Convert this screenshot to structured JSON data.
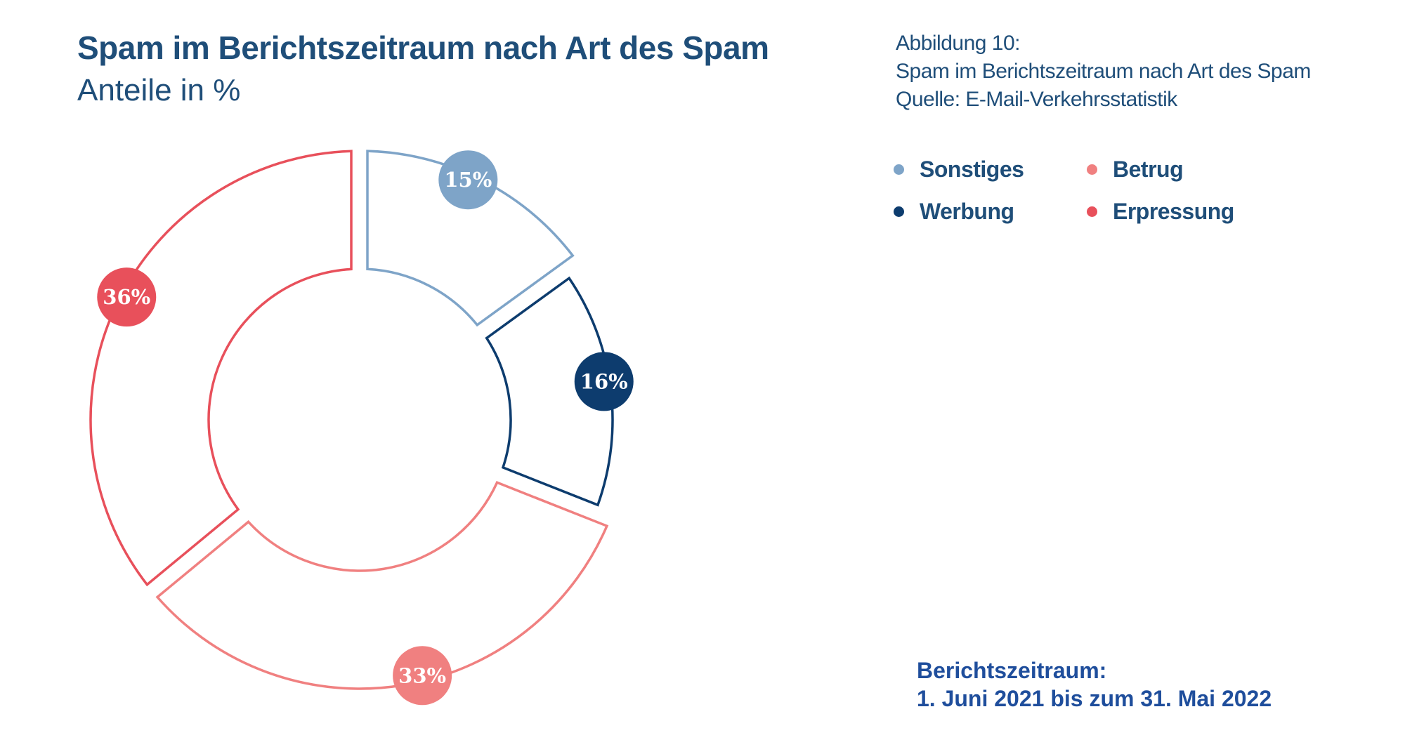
{
  "header": {
    "title": "Spam im Berichtszeitraum nach Art des Spam",
    "subtitle": "Anteile in %"
  },
  "caption": {
    "line1": "Abbildung 10:",
    "line2": "Spam im Berichtszeitraum nach Art des Spam",
    "line3": "Quelle: E-Mail-Verkehrsstatistik"
  },
  "legend": {
    "items": [
      {
        "label": "Sonstiges",
        "color": "#7ea4c8"
      },
      {
        "label": "Betrug",
        "color": "#f08080"
      },
      {
        "label": "Werbung",
        "color": "#0d3c6e"
      },
      {
        "label": "Erpressung",
        "color": "#e8505b"
      }
    ]
  },
  "period": {
    "line1": "Berichtszeitraum:",
    "line2": "1. Juni 2021 bis zum 31. Mai 2022"
  },
  "chart_data": {
    "type": "pie",
    "title": "Spam im Berichtszeitraum nach Art des Spam",
    "subtitle": "Anteile in %",
    "donut": true,
    "categories": [
      "Sonstiges",
      "Werbung",
      "Betrug",
      "Erpressung"
    ],
    "values": [
      15,
      16,
      33,
      36
    ],
    "labels": [
      "15%",
      "16%",
      "33%",
      "36%"
    ],
    "colors": [
      "#7ea4c8",
      "#0d3c6e",
      "#f08080",
      "#e8505b"
    ],
    "legend_position": "top-right"
  }
}
